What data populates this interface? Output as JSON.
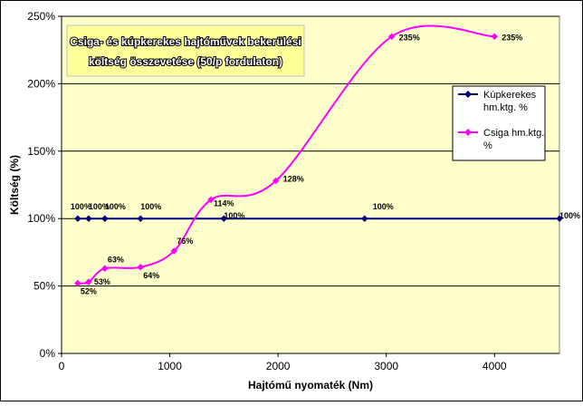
{
  "chart_data": {
    "type": "line",
    "title_lines": [
      "Csiga- és kúpkerekes hajtóművek bekerülési",
      "költség összevetése (50/p fordulaton)"
    ],
    "xlabel": "Hajtómű nyomaték (Nm)",
    "ylabel": "Költség (%)",
    "xlim": [
      0,
      4600
    ],
    "ylim": [
      0,
      250
    ],
    "x_ticks": [
      0,
      1000,
      2000,
      3000,
      4000
    ],
    "x_tick_labels": [
      "0",
      "1000",
      "2000",
      "3000",
      "4000"
    ],
    "y_ticks": [
      0,
      50,
      100,
      150,
      200,
      250
    ],
    "y_tick_labels": [
      "0%",
      "50%",
      "100%",
      "150%",
      "200%",
      "250%"
    ],
    "grid": "horizontal",
    "legend_position": "right",
    "series": [
      {
        "name": "Kúpkerekes hm.ktg. %",
        "legend_lines": [
          "Kúpkerekes",
          "hm.ktg. %"
        ],
        "color": "#000080",
        "x": [
          150,
          250,
          400,
          730,
          1500,
          2800,
          4600
        ],
        "y": [
          100,
          100,
          100,
          100,
          100,
          100,
          100
        ],
        "labels": [
          "100%",
          "100%",
          "100%",
          "100%",
          "100%",
          "100%",
          "100%"
        ]
      },
      {
        "name": "Csiga hm.ktg. %",
        "legend_lines": [
          "Csiga hm.ktg.",
          "%"
        ],
        "color": "#ff00ff",
        "x": [
          150,
          250,
          400,
          730,
          1040,
          1380,
          1980,
          3050,
          4000
        ],
        "y": [
          52,
          53,
          63,
          64,
          76,
          114,
          128,
          235,
          235
        ],
        "labels": [
          "52%",
          "53%",
          "63%",
          "64%",
          "76%",
          "114%",
          "128%",
          "235%",
          "235%"
        ]
      }
    ]
  }
}
